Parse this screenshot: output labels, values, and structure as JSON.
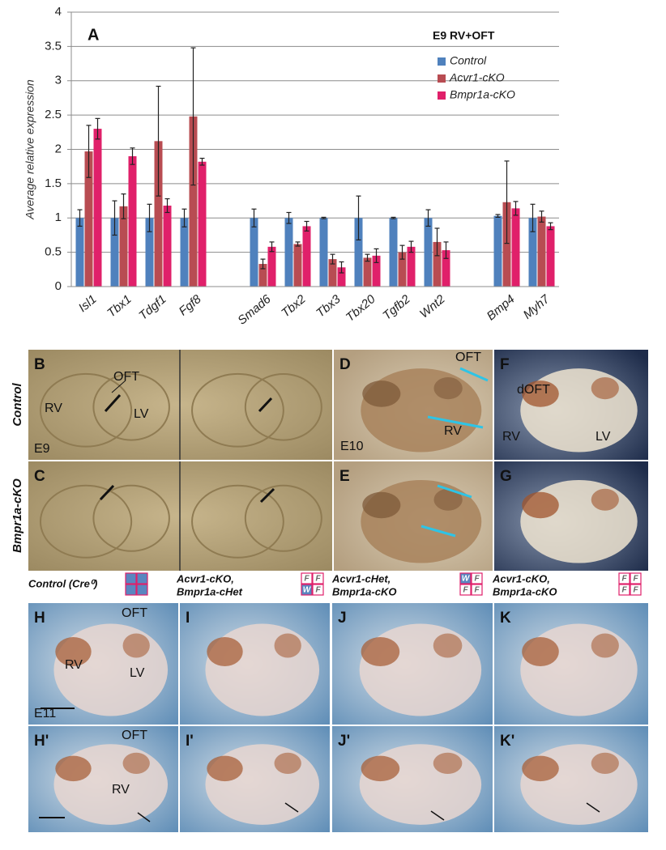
{
  "chart_data": {
    "type": "bar",
    "panel_label": "A",
    "legend_title": "E9 RV+OFT",
    "y_label": "Average relative expression",
    "categories": [
      "Isl1",
      "Tbx1",
      "Tdgf1",
      "Fgf8",
      null,
      "Smad6",
      "Tbx2",
      "Tbx3",
      "Tbx20",
      "Tgfb2",
      "Wnt2",
      null,
      "Bmp4",
      "Myh7"
    ],
    "series": [
      {
        "name": "Control",
        "color": "#4f81bd",
        "values": [
          1.0,
          1.0,
          1.0,
          1.0,
          null,
          1.0,
          1.0,
          1.0,
          1.0,
          1.0,
          1.0,
          null,
          1.03,
          1.0
        ],
        "errors": [
          0.12,
          0.25,
          0.2,
          0.13,
          null,
          0.13,
          0.08,
          0.01,
          0.32,
          0.01,
          0.12,
          null,
          0.02,
          0.2
        ]
      },
      {
        "name": "Acvr1-cKO",
        "color": "#b84c52",
        "values": [
          1.97,
          1.17,
          2.12,
          2.48,
          null,
          0.33,
          0.62,
          0.4,
          0.42,
          0.5,
          0.65,
          null,
          1.23,
          1.02
        ],
        "errors": [
          0.38,
          0.18,
          0.8,
          1.0,
          null,
          0.07,
          0.03,
          0.07,
          0.05,
          0.1,
          0.2,
          null,
          0.6,
          0.08
        ]
      },
      {
        "name": "Bmpr1a-cKO",
        "color": "#e0206a",
        "values": [
          2.3,
          1.9,
          1.18,
          1.82,
          null,
          0.58,
          0.88,
          0.28,
          0.45,
          0.58,
          0.53,
          null,
          1.14,
          0.88
        ],
        "errors": [
          0.15,
          0.12,
          0.1,
          0.05,
          null,
          0.07,
          0.07,
          0.08,
          0.1,
          0.08,
          0.12,
          null,
          0.1,
          0.05
        ]
      }
    ],
    "ylim": [
      0,
      4
    ],
    "yticks": [
      0,
      0.5,
      1,
      1.5,
      2,
      2.5,
      3,
      3.5,
      4
    ],
    "grid": true,
    "legend_position": "upper right"
  },
  "photo_panels": {
    "row_labels": [
      "Control",
      "Bmpr1a-cKO"
    ],
    "panels": [
      {
        "label": "B",
        "annotations": [
          "OFT",
          "RV",
          "LV",
          "E9"
        ]
      },
      {
        "label": "D",
        "annotations": [
          "OFT",
          "RV",
          "E10"
        ]
      },
      {
        "label": "F",
        "annotations": [
          "dOFT",
          "RV",
          "LV"
        ]
      },
      {
        "label": "C",
        "annotations": []
      },
      {
        "label": "E",
        "annotations": []
      },
      {
        "label": "G",
        "annotations": []
      },
      {
        "label": "H",
        "annotations": [
          "OFT",
          "RV",
          "LV",
          "E11"
        ]
      },
      {
        "label": "I",
        "annotations": []
      },
      {
        "label": "J",
        "annotations": []
      },
      {
        "label": "K",
        "annotations": []
      },
      {
        "label": "H'",
        "annotations": [
          "OFT",
          "RV"
        ]
      },
      {
        "label": "I'",
        "annotations": []
      },
      {
        "label": "J'",
        "annotations": []
      },
      {
        "label": "K'",
        "annotations": []
      }
    ]
  },
  "genotypes": [
    {
      "title": [
        "Control (Cre⁰)"
      ]
    },
    {
      "title": [
        "Acvr1-cKO,",
        "Bmpr1a-cHet"
      ],
      "grid": [
        "F",
        "F",
        "W",
        "F"
      ]
    },
    {
      "title": [
        "Acvr1-cHet,",
        "Bmpr1a-cKO"
      ],
      "grid": [
        "W",
        "F",
        "F",
        "F"
      ]
    },
    {
      "title": [
        "Acvr1-cKO,",
        "Bmpr1a-cKO"
      ],
      "grid": [
        "F",
        "F",
        "F",
        "F"
      ]
    }
  ]
}
